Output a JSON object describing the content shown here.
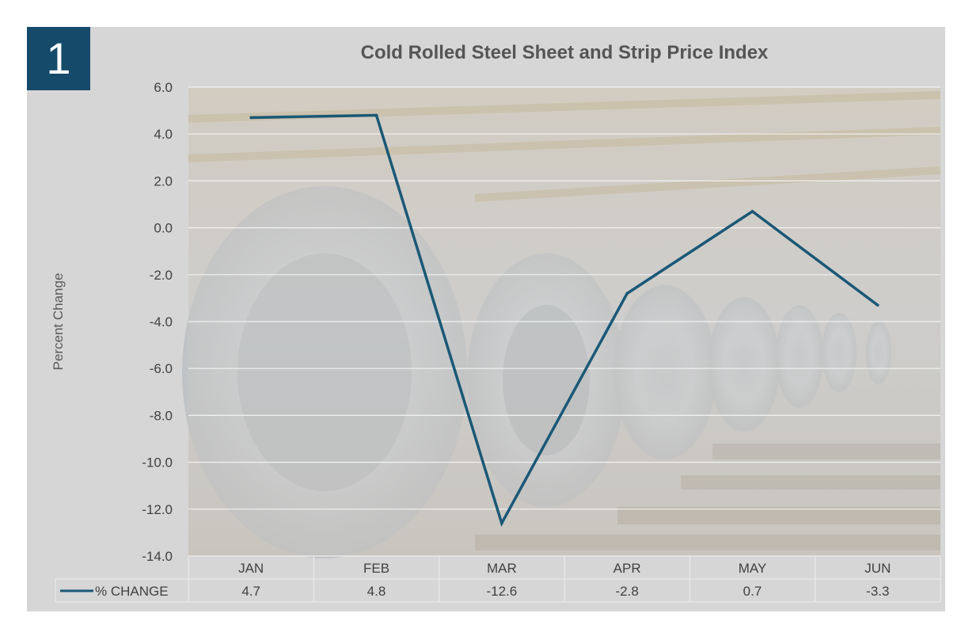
{
  "badge": {
    "number": "1"
  },
  "chart_data": {
    "type": "line",
    "title": "Cold Rolled Steel Sheet and Strip Price Index",
    "xlabel": "",
    "ylabel": "Percent Change",
    "categories": [
      "JAN",
      "FEB",
      "MAR",
      "APR",
      "MAY",
      "JUN"
    ],
    "series": [
      {
        "name": "% CHANGE",
        "values": [
          4.7,
          4.8,
          -12.6,
          -2.8,
          0.7,
          -3.3
        ],
        "color": "#1a5876"
      }
    ],
    "data_labels": [
      "4.7",
      "4.8",
      "-12.6",
      "-2.8",
      "0.7",
      "-3.3"
    ],
    "ylim": [
      -14,
      6
    ],
    "yticks": [
      6.0,
      4.0,
      2.0,
      0.0,
      -2.0,
      -4.0,
      -6.0,
      -8.0,
      -10.0,
      -12.0,
      -14.0
    ],
    "ytick_labels": [
      "6.0",
      "4.0",
      "2.0",
      "0.0",
      "-2.0",
      "-4.0",
      "-6.0",
      "-8.0",
      "-10.0",
      "-12.0",
      "-14.0"
    ],
    "grid": true,
    "legend": "data-table-bottom",
    "background": "steel-coil-factory-photo"
  }
}
